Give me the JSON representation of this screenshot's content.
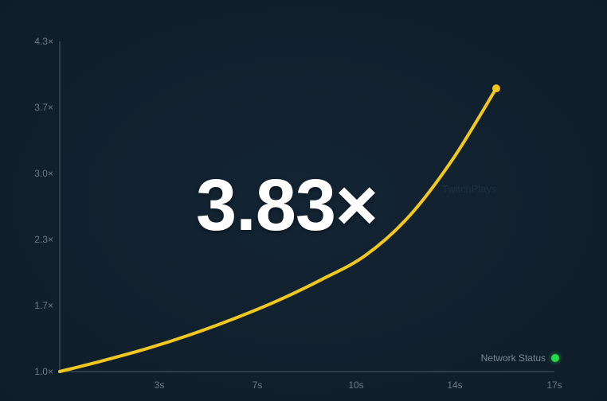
{
  "game": {
    "multiplier_text": "3.83×",
    "watermark_text": "TwitchPlays",
    "network_status_label": "Network Status",
    "network_status_color": "#27d84a"
  },
  "chart_data": {
    "type": "line",
    "y_ticks": [
      "1.0×",
      "1.7×",
      "2.3×",
      "3.0×",
      "3.7×",
      "4.3×"
    ],
    "x_ticks": [
      "3s",
      "7s",
      "10s",
      "14s",
      "17s"
    ],
    "xlim": [
      0,
      17
    ],
    "ylim": [
      1.0,
      4.3
    ],
    "x": [
      0,
      1.5,
      3,
      4.5,
      6,
      7.5,
      9,
      10.5,
      12,
      13.5,
      15
    ],
    "y": [
      1.0,
      1.11,
      1.23,
      1.37,
      1.53,
      1.71,
      1.92,
      2.16,
      2.55,
      3.12,
      3.83
    ],
    "line_color": "#f2c81e"
  }
}
